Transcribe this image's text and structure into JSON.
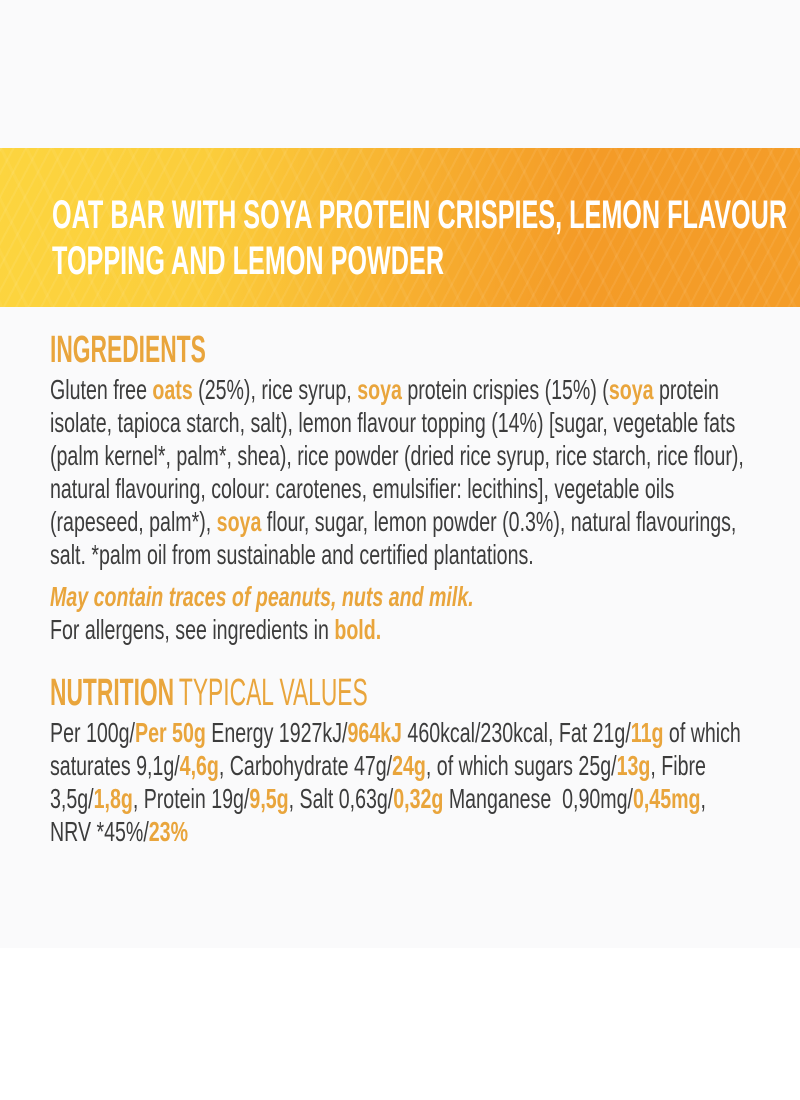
{
  "colors": {
    "accent": "#E9A53C",
    "text-dark": "#3C3C3C",
    "banner-left": "#FCD53F",
    "banner-right": "#F49B27",
    "page-bg": "#FFFFFF"
  },
  "banner": {
    "title_lines": [
      "OAT BAR WITH SOYA PROTEIN CRISPIES, LEMON FLAVOUR",
      "TOPPING AND LEMON POWDER"
    ]
  },
  "ingredients": {
    "heading": "INGREDIENTS",
    "body_segments": [
      {
        "text": "Gluten free ",
        "style": "normal"
      },
      {
        "text": "oats",
        "style": "accent-bold"
      },
      {
        "text": " (25%), rice syrup, ",
        "style": "normal"
      },
      {
        "text": "soya",
        "style": "accent-bold"
      },
      {
        "text": " protein crispies (15%) (",
        "style": "normal"
      },
      {
        "text": "soya",
        "style": "accent-bold"
      },
      {
        "text": " protein isolate, tapioca starch, salt), lemon flavour topping (14%) [sugar, vegetable fats (palm kernel*, palm*, shea), rice powder (dried rice syrup, rice starch, rice flour), natural flavouring, colour: carotenes, emulsifier: lecithins], vegetable oils (rapeseed, palm*), ",
        "style": "normal"
      },
      {
        "text": "soya",
        "style": "accent-bold"
      },
      {
        "text": " flour, sugar, lemon powder (0.3%), natural flavourings, salt. *palm oil from sustainable and certified plantations.",
        "style": "normal"
      }
    ],
    "allergen_warning": "May contain traces of peanuts, nuts and milk.",
    "allergen_note_segments": [
      {
        "text": "For allergens, see ingredients in ",
        "style": "normal"
      },
      {
        "text": "bold.",
        "style": "accent-bold"
      }
    ]
  },
  "nutrition": {
    "heading_bold": "NUTRITION",
    "heading_light": "TYPICAL VALUES",
    "body_segments": [
      {
        "text": "Per 100g/",
        "style": "normal"
      },
      {
        "text": "Per 50g",
        "style": "accent-bold"
      },
      {
        "text": " Energy 1927kJ/",
        "style": "normal"
      },
      {
        "text": "964kJ",
        "style": "accent-bold"
      },
      {
        "text": " 460kcal/230kcal, Fat 21g/",
        "style": "normal"
      },
      {
        "text": "11g",
        "style": "accent-bold"
      },
      {
        "text": " of which saturates 9,1g/",
        "style": "normal"
      },
      {
        "text": "4,6g",
        "style": "accent-bold"
      },
      {
        "text": ", Carbohydrate 47g/",
        "style": "normal"
      },
      {
        "text": "24g",
        "style": "accent-bold"
      },
      {
        "text": ", of which sugars 25g/",
        "style": "normal"
      },
      {
        "text": "13g",
        "style": "accent-bold"
      },
      {
        "text": ", Fibre 3,5g/",
        "style": "normal"
      },
      {
        "text": "1,8g",
        "style": "accent-bold"
      },
      {
        "text": ", Protein 19g/",
        "style": "normal"
      },
      {
        "text": "9,5g",
        "style": "accent-bold"
      },
      {
        "text": ", Salt 0,63g/",
        "style": "normal"
      },
      {
        "text": "0,32g",
        "style": "accent-bold"
      },
      {
        "text": " Manganese  0,90mg/",
        "style": "normal"
      },
      {
        "text": "0,45mg",
        "style": "accent-bold"
      },
      {
        "text": ", NRV *45%/",
        "style": "normal"
      },
      {
        "text": "23%",
        "style": "accent-bold"
      }
    ]
  }
}
